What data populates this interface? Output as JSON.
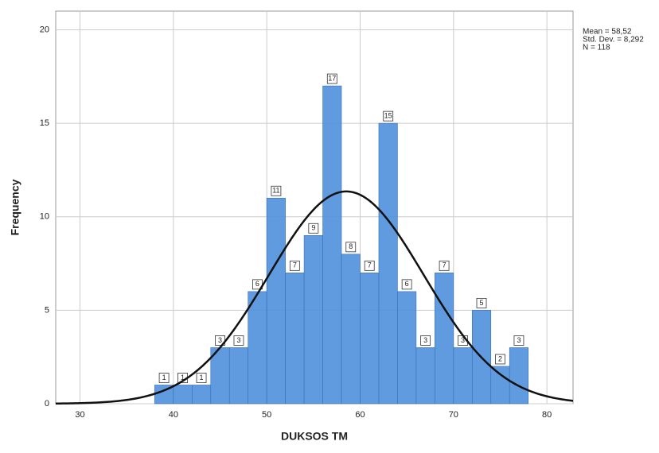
{
  "chart_data": {
    "type": "histogram",
    "x_label": "DUKSOS TM",
    "y_label": "Frequency",
    "bins": [
      38,
      40,
      42,
      44,
      46,
      48,
      50,
      52,
      54,
      56,
      58,
      60,
      62,
      64,
      66,
      68,
      70,
      72,
      74,
      76,
      78
    ],
    "values": [
      1,
      1,
      1,
      3,
      3,
      6,
      11,
      7,
      9,
      17,
      8,
      7,
      15,
      6,
      3,
      7,
      3,
      5,
      2,
      3
    ],
    "color": "#4f8fdc",
    "xlim": [
      27.4,
      82.8
    ],
    "xticks": [
      30,
      40,
      50,
      60,
      70,
      80
    ],
    "ylim": [
      0,
      21
    ],
    "yticks": [
      0,
      5,
      10,
      15,
      20
    ],
    "grid": true,
    "stats": [
      {
        "label": "Mean = 58,52",
        "value": 58.52
      },
      {
        "label": "Std. Dev. = 8,292",
        "value": 8.292
      },
      {
        "label": "N = 118",
        "value": 118
      }
    ]
  }
}
